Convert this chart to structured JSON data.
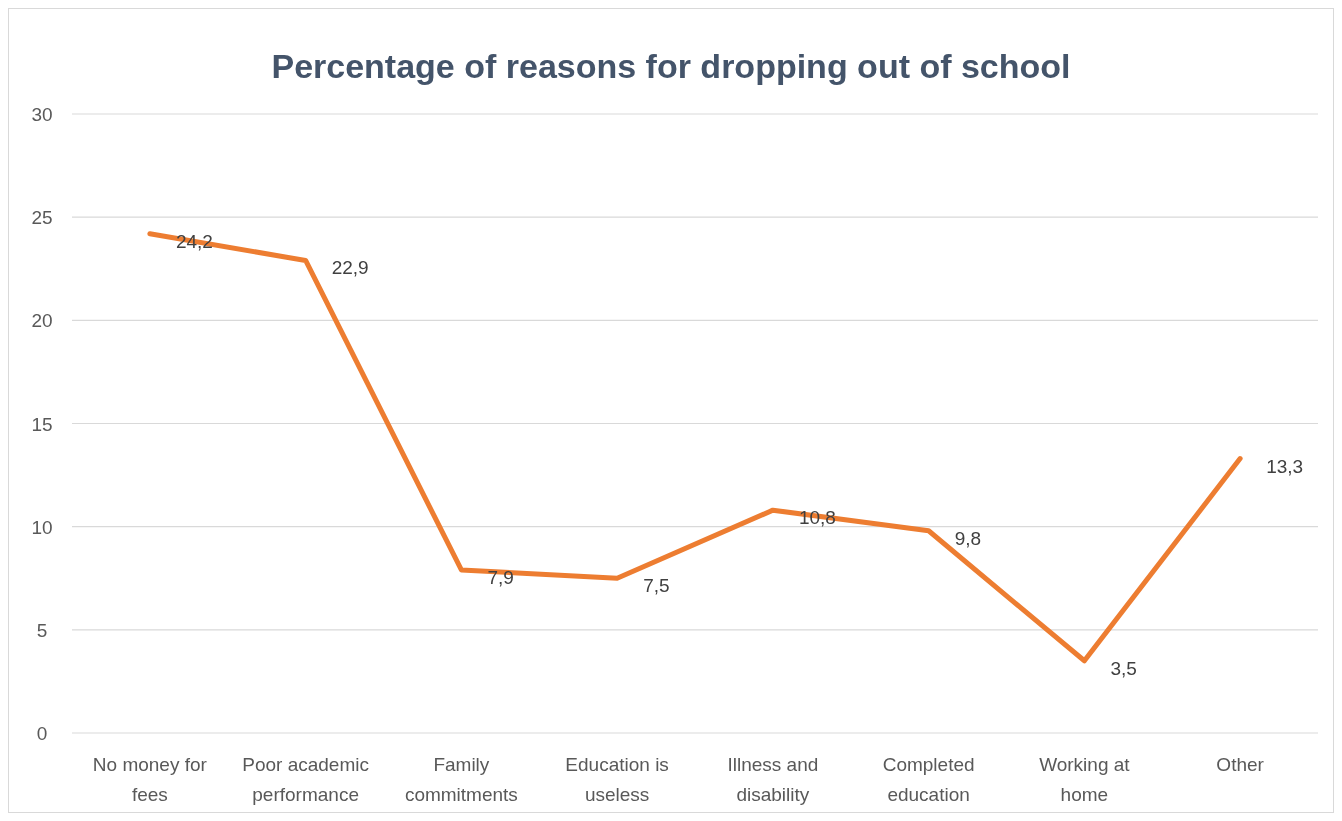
{
  "chart_data": {
    "type": "line",
    "title": "Percentage of reasons for dropping out of school",
    "categories": [
      "No money for fees",
      "Poor academic performance",
      "Family commitments",
      "Education is useless",
      "Illness and disability",
      "Completed education",
      "Working at home",
      "Other"
    ],
    "series": [
      {
        "color": "#ed7d31",
        "values": [
          24.2,
          22.9,
          7.9,
          7.5,
          10.8,
          9.8,
          3.5,
          13.3
        ],
        "value_labels": [
          "24,2",
          "22,9",
          "7,9",
          "7,5",
          "10,8",
          "9,8",
          "3,5",
          "13,3"
        ]
      }
    ],
    "ylim": [
      0,
      30
    ],
    "yticks": [
      0,
      5,
      10,
      15,
      20,
      25,
      30
    ],
    "grid": "y",
    "marker": "none",
    "line_style": "solid"
  }
}
